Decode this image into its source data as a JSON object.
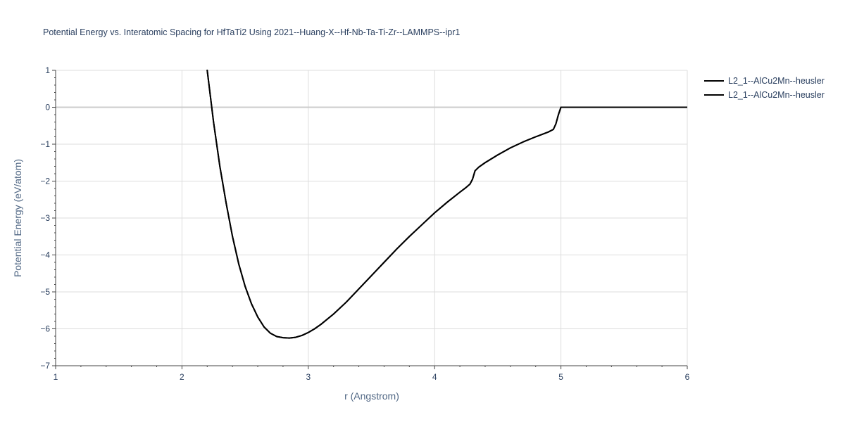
{
  "chart_data": {
    "type": "line",
    "title": "Potential Energy vs. Interatomic Spacing for HfTaTi2 Using 2021--Huang-X--Hf-Nb-Ta-Ti-Zr--LAMMPS--ipr1",
    "xlabel": "r (Angstrom)",
    "ylabel": "Potential Energy (eV/atom)",
    "xlim": [
      1,
      6
    ],
    "ylim": [
      -7,
      1
    ],
    "x_ticks": [
      1,
      2,
      3,
      4,
      5,
      6
    ],
    "y_ticks": [
      1,
      0,
      -1,
      -2,
      -3,
      -4,
      -5,
      -6,
      -7
    ],
    "x_tick_labels": [
      "1",
      "2",
      "3",
      "4",
      "5",
      "6"
    ],
    "y_tick_labels": [
      "1",
      "0",
      "−1",
      "−2",
      "−3",
      "−4",
      "−5",
      "−6",
      "−7"
    ],
    "grid": true,
    "legend_position": "top-right",
    "colors": {
      "line": "#000000",
      "grid": "#dddddd",
      "zero_line": "#cccccc",
      "text": "#2a3f5f"
    },
    "series": [
      {
        "name": "L2_1--AlCu2Mn--heusler",
        "x": [
          2.2,
          2.25,
          2.3,
          2.35,
          2.4,
          2.45,
          2.5,
          2.55,
          2.6,
          2.65,
          2.7,
          2.75,
          2.8,
          2.85,
          2.9,
          2.95,
          3.0,
          3.05,
          3.1,
          3.2,
          3.3,
          3.4,
          3.5,
          3.6,
          3.7,
          3.8,
          3.9,
          4.0,
          4.1,
          4.2,
          4.25,
          4.28,
          4.3,
          4.32,
          4.35,
          4.4,
          4.5,
          4.6,
          4.7,
          4.8,
          4.9,
          4.94,
          4.96,
          4.98,
          5.0,
          5.2,
          5.4,
          5.6,
          5.8,
          6.0
        ],
        "y": [
          1.0,
          -0.4,
          -1.6,
          -2.6,
          -3.5,
          -4.25,
          -4.85,
          -5.32,
          -5.68,
          -5.95,
          -6.12,
          -6.21,
          -6.24,
          -6.25,
          -6.23,
          -6.18,
          -6.1,
          -6.0,
          -5.88,
          -5.6,
          -5.28,
          -4.92,
          -4.56,
          -4.2,
          -3.84,
          -3.5,
          -3.18,
          -2.86,
          -2.57,
          -2.3,
          -2.17,
          -2.08,
          -1.95,
          -1.72,
          -1.62,
          -1.5,
          -1.29,
          -1.1,
          -0.94,
          -0.8,
          -0.67,
          -0.6,
          -0.45,
          -0.2,
          0.0,
          0.0,
          0.0,
          0.0,
          0.0,
          0.0
        ]
      },
      {
        "name": "L2_1--AlCu2Mn--heusler",
        "x": [
          2.2,
          2.25,
          2.3,
          2.35,
          2.4,
          2.45,
          2.5,
          2.55,
          2.6,
          2.65,
          2.7,
          2.75,
          2.8,
          2.85,
          2.9,
          2.95,
          3.0,
          3.05,
          3.1,
          3.2,
          3.3,
          3.4,
          3.5,
          3.6,
          3.7,
          3.8,
          3.9,
          4.0,
          4.1,
          4.2,
          4.25,
          4.28,
          4.3,
          4.32,
          4.35,
          4.4,
          4.5,
          4.6,
          4.7,
          4.8,
          4.9,
          4.94,
          4.96,
          4.98,
          5.0,
          5.2,
          5.4,
          5.6,
          5.8,
          6.0
        ],
        "y": [
          1.0,
          -0.4,
          -1.6,
          -2.6,
          -3.5,
          -4.25,
          -4.85,
          -5.32,
          -5.68,
          -5.95,
          -6.12,
          -6.21,
          -6.24,
          -6.25,
          -6.23,
          -6.18,
          -6.1,
          -6.0,
          -5.88,
          -5.6,
          -5.28,
          -4.92,
          -4.56,
          -4.2,
          -3.84,
          -3.5,
          -3.18,
          -2.86,
          -2.57,
          -2.3,
          -2.17,
          -2.08,
          -1.95,
          -1.72,
          -1.62,
          -1.5,
          -1.29,
          -1.1,
          -0.94,
          -0.8,
          -0.67,
          -0.6,
          -0.45,
          -0.2,
          0.0,
          0.0,
          0.0,
          0.0,
          0.0,
          0.0
        ]
      }
    ]
  }
}
